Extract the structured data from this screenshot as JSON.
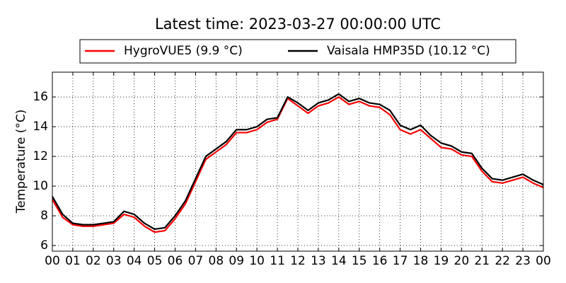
{
  "chart_data": {
    "type": "line",
    "title": "Latest time: 2023-03-27 00:00:00 UTC",
    "ylabel": "Temperature (°C)",
    "x": [
      0,
      0.5,
      1,
      1.5,
      2,
      2.5,
      3,
      3.5,
      4,
      4.5,
      5,
      5.5,
      6,
      6.5,
      7,
      7.5,
      8,
      8.5,
      9,
      9.5,
      10,
      10.5,
      11,
      11.5,
      12,
      12.5,
      13,
      13.5,
      14,
      14.5,
      15,
      15.5,
      16,
      16.5,
      17,
      17.5,
      18,
      18.5,
      19,
      19.5,
      20,
      20.5,
      21,
      21.5,
      22,
      22.5,
      23,
      23.5,
      24
    ],
    "series": [
      {
        "name": "HygroVUE5 (9.9 °C)",
        "color": "#ff0000",
        "values": [
          9.1,
          7.9,
          7.4,
          7.3,
          7.3,
          7.4,
          7.5,
          8.1,
          7.9,
          7.3,
          6.9,
          7.0,
          7.8,
          8.8,
          10.3,
          11.8,
          12.3,
          12.8,
          13.6,
          13.6,
          13.8,
          14.3,
          14.5,
          15.9,
          15.4,
          14.9,
          15.4,
          15.6,
          16.0,
          15.5,
          15.7,
          15.4,
          15.3,
          14.8,
          13.8,
          13.5,
          13.8,
          13.2,
          12.6,
          12.5,
          12.1,
          12.0,
          11.0,
          10.3,
          10.2,
          10.4,
          10.6,
          10.2,
          9.9
        ]
      },
      {
        "name": "Vaisala HMP35D (10.12 °C)",
        "color": "#000000",
        "values": [
          9.3,
          8.1,
          7.5,
          7.4,
          7.4,
          7.5,
          7.6,
          8.3,
          8.1,
          7.5,
          7.1,
          7.2,
          8.0,
          9.0,
          10.5,
          12.0,
          12.5,
          13.0,
          13.8,
          13.8,
          14.0,
          14.5,
          14.6,
          16.0,
          15.6,
          15.1,
          15.6,
          15.8,
          16.2,
          15.7,
          15.9,
          15.6,
          15.5,
          15.1,
          14.1,
          13.8,
          14.1,
          13.4,
          12.9,
          12.7,
          12.3,
          12.2,
          11.2,
          10.5,
          10.4,
          10.6,
          10.8,
          10.4,
          10.1
        ]
      }
    ],
    "xlim": [
      0,
      24
    ],
    "xticks": [
      {
        "value": 0,
        "label": "00"
      },
      {
        "value": 1,
        "label": "01"
      },
      {
        "value": 2,
        "label": "02"
      },
      {
        "value": 3,
        "label": "03"
      },
      {
        "value": 4,
        "label": "04"
      },
      {
        "value": 5,
        "label": "05"
      },
      {
        "value": 6,
        "label": "06"
      },
      {
        "value": 7,
        "label": "07"
      },
      {
        "value": 8,
        "label": "08"
      },
      {
        "value": 9,
        "label": "09"
      },
      10,
      11,
      12,
      13,
      14,
      15,
      16,
      17,
      18,
      19,
      20,
      21,
      22,
      23,
      {
        "value": 24,
        "label": "00"
      }
    ],
    "ylim": [
      5.62,
      17.67
    ],
    "yticks": [
      6,
      8,
      10,
      12,
      14,
      16
    ],
    "grid": true,
    "legend": "top"
  }
}
